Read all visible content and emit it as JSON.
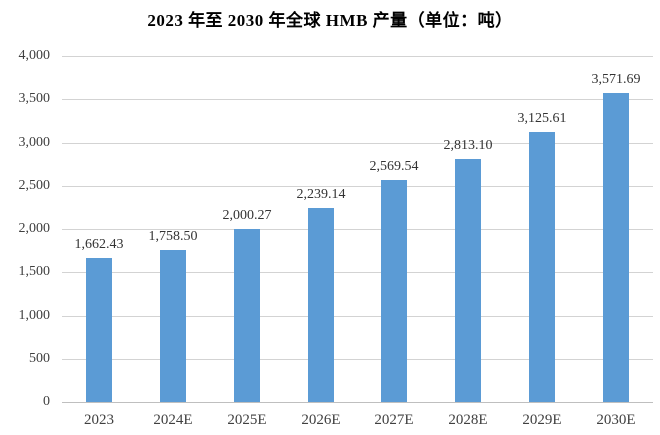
{
  "title": "2023 年至 2030 年全球 HMB 产量（单位：吨）",
  "chart_data": {
    "type": "bar",
    "title": "2023 年至 2030 年全球 HMB 产量（单位：吨）",
    "categories": [
      "2023",
      "2024E",
      "2025E",
      "2026E",
      "2027E",
      "2028E",
      "2029E",
      "2030E"
    ],
    "values": [
      1662.43,
      1758.5,
      2000.27,
      2239.14,
      2569.54,
      2813.1,
      3125.61,
      3571.69
    ],
    "value_labels": [
      "1,662.43",
      "1,758.50",
      "2,000.27",
      "2,239.14",
      "2,569.54",
      "2,813.10",
      "3,125.61",
      "3,571.69"
    ],
    "xlabel": "",
    "ylabel": "",
    "ylim": [
      0,
      4000
    ],
    "ytick_interval": 500,
    "ytick_labels": [
      "0",
      "500",
      "1,000",
      "1,500",
      "2,000",
      "2,500",
      "3,000",
      "3,500",
      "4,000"
    ],
    "grid": true,
    "legend_position": "none",
    "colors": {
      "bar": "#5b9bd5",
      "gridline": "#d3d3d3",
      "axis_line": "#bfbfbf",
      "tick_text": "#404040",
      "data_label_text": "#333333",
      "title_text": "#000000"
    }
  }
}
